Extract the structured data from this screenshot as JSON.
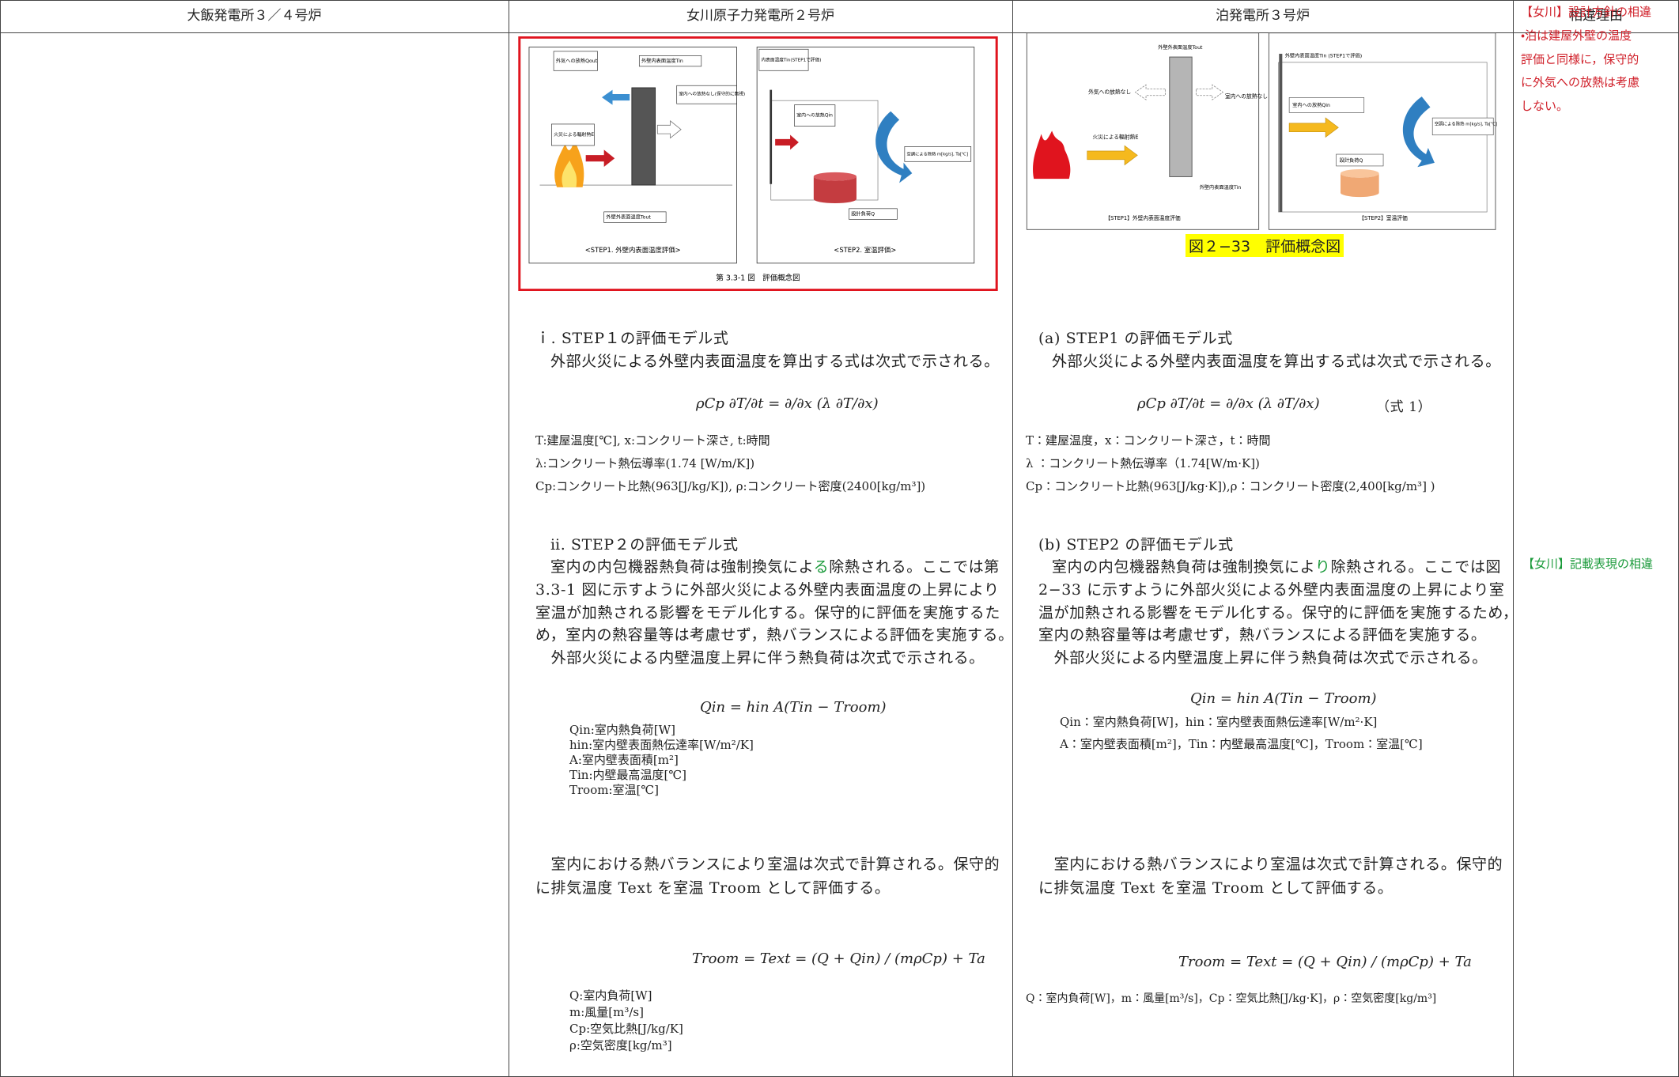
{
  "header": {
    "col1": "大飯発電所３／４号炉",
    "col2": "女川原子力発電所２号炉",
    "col3": "泊発電所３号炉",
    "col4": "相違理由"
  },
  "onagawa": {
    "figure": {
      "labels": [
        "外気への放熱Qout",
        "外壁内表面温度Tin",
        "室内への放熱なし(保守的に無視)",
        "火災による輻射熱E",
        "外壁外表面温度Tout",
        "内表面温度Tin(STEP1で評価)",
        "室内への放熱Qin",
        "空調による除熱 m[kg/s], Ta[℃]",
        "設計負荷Q"
      ],
      "step1_caption": "<STEP1. 外壁内表面温度評価>",
      "step2_caption": "<STEP2. 室温評価>",
      "caption": "第 3.3-1 図　評価概念図"
    },
    "step1": {
      "heading": "ｉ. STEP１の評価モデル式",
      "intro": "外部火災による外壁内表面温度を算出する式は次式で示される。",
      "formula": "ρCp ∂T/∂t = ∂/∂x (λ ∂T/∂x)",
      "definitions": [
        "T:建屋温度[℃], x:コンクリート深さ, t:時間",
        "λ:コンクリート熱伝導率(1.74 [W/m/K])",
        "Cp:コンクリート比熱(963[J/kg/K]), ρ:コンクリート密度(2400[kg/m³])"
      ]
    },
    "step2": {
      "heading": "ⅱ. STEP２の評価モデル式",
      "lead": "室内の内包機器熱負荷は強制換気によ",
      "lead_highlight": "る",
      "lead_rest": "除熱される。ここでは第",
      "lines": [
        "3.3-1 図に示すように外部火災による外壁内表面温度の上昇により",
        "室温が加熱される影響をモデル化する。保守的に評価を実施するた",
        "め，室内の熱容量等は考慮せず，熱バランスによる評価を実施する。",
        "　外部火災による内壁温度上昇に伴う熱負荷は次式で示される。"
      ],
      "formula": "Qin = hin A(Tin − Troom)",
      "definitions": [
        "Qin:室内熱負荷[W]",
        "hin:室内壁表面熱伝達率[W/m²/K]",
        "A:室内壁表面積[m²]",
        "Tin:内壁最高温度[℃]",
        "Troom:室温[℃]"
      ]
    },
    "balance": {
      "lines": [
        "　室内における熱バランスにより室温は次式で計算される。保守的",
        "に排気温度 Text を室温 Troom として評価する。"
      ],
      "formula": "Troom = Text = (Q + Qin) / (mρCp) + Ta",
      "definitions": [
        "Q:室内負荷[W]",
        "m:風量[m³/s]",
        "Cp:空気比熱[J/kg/K]",
        "ρ:空気密度[kg/m³]"
      ]
    }
  },
  "tomari": {
    "figure": {
      "labels": [
        "外壁外表面温度Tout",
        "外気への放熱なし",
        "室内への放熱なし",
        "火災による輻射熱E",
        "外壁内表面温度Tin",
        "外壁内表面温度Tin (STEP1で評価)",
        "室内への放熱Qin",
        "空調による除熱 m[kg/s], Ta[℃]",
        "設計負荷Q"
      ],
      "step1_caption": "【STEP1】外壁内表面温度評価",
      "step2_caption": "【STEP2】室温評価",
      "caption": "図２−33　評価概念図"
    },
    "step1": {
      "heading": "(a) STEP1 の評価モデル式",
      "intro": "外部火災による外壁内表面温度を算出する式は次式で示される。",
      "formula": "ρCp ∂T/∂t = ∂/∂x (λ ∂T/∂x)",
      "equation_number": "（式 1）",
      "definitions": [
        "T：建屋温度，x：コンクリート深さ，t：時間",
        "λ ：コンクリート熱伝導率（1.74[W/m·K])",
        "Cp：コンクリート比熱(963[J/kg·K]),ρ：コンクリート密度(2,400[kg/m³] )"
      ]
    },
    "step2": {
      "heading": "(b) STEP2 の評価モデル式",
      "lead": "室内の内包機器熱負荷は強制換気によ",
      "lead_highlight": "り",
      "lead_rest": "除熱される。ここでは図",
      "lines": [
        "2−33 に示すように外部火災による外壁内表面温度の上昇により室",
        "温が加熱される影響をモデル化する。保守的に評価を実施するため，",
        "室内の熱容量等は考慮せず，熱バランスによる評価を実施する。",
        "　外部火災による内壁温度上昇に伴う熱負荷は次式で示される。"
      ],
      "formula": "Qin = hin A(Tin − Troom)",
      "definitions": [
        "Qin：室内熱負荷[W]，hin：室内壁表面熱伝達率[W/m²·K]",
        "A：室内壁表面積[m²]，Tin：内壁最高温度[℃]，Troom：室温[℃]"
      ]
    },
    "balance": {
      "lines": [
        "　室内における熱バランスにより室温は次式で計算される。保守的",
        "に排気温度 Text を室温 Troom として評価する。"
      ],
      "formula": "Troom = Text = (Q + Qin) / (mρCp) + Ta",
      "definitions": [
        "Q：室内負荷[W]，m：風量[m³/s]，Cp：空気比熱[J/kg·K]，ρ：空気密度[kg/m³]"
      ]
    }
  },
  "reasons": {
    "design": [
      "【女川】設計方針の相違",
      "・泊は建屋外壁の温度",
      "評価と同様に，保守的",
      "に外気への放熱は考慮",
      "しない。"
    ],
    "wording": "【女川】記載表現の相違"
  }
}
